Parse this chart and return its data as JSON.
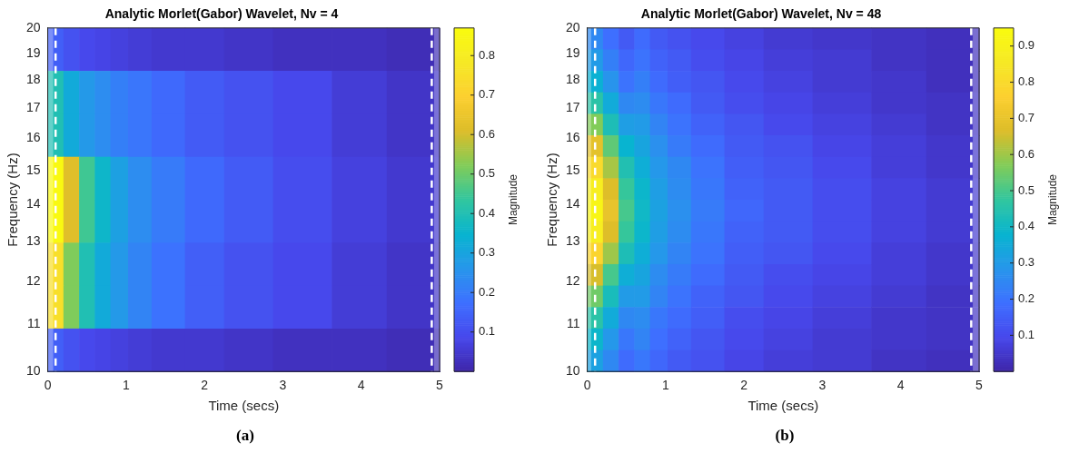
{
  "chart_data": [
    {
      "type": "heatmap",
      "title": "Analytic Morlet(Gabor) Wavelet, Nv = 4",
      "xlabel": "Time (secs)",
      "ylabel": "Frequency (Hz)",
      "clabel": "Magnitude",
      "x": [
        0.1,
        0.3,
        0.5,
        0.7,
        0.9,
        1.15,
        1.5,
        2,
        2.5,
        3.25,
        4,
        4.65
      ],
      "cells": [
        [
          0.14,
          0.11,
          0.09,
          0.08,
          0.07,
          0.06,
          0.05,
          0.05,
          0.04,
          0.03,
          0.03,
          0.02
        ],
        [
          0.4,
          0.32,
          0.27,
          0.24,
          0.21,
          0.19,
          0.16,
          0.13,
          0.11,
          0.09,
          0.06,
          0.04
        ],
        [
          0.4,
          0.32,
          0.27,
          0.24,
          0.21,
          0.19,
          0.16,
          0.13,
          0.11,
          0.09,
          0.06,
          0.04
        ],
        [
          0.86,
          0.62,
          0.45,
          0.36,
          0.29,
          0.24,
          0.2,
          0.16,
          0.13,
          0.1,
          0.07,
          0.05
        ],
        [
          0.86,
          0.62,
          0.45,
          0.36,
          0.29,
          0.24,
          0.2,
          0.16,
          0.13,
          0.1,
          0.07,
          0.05
        ],
        [
          0.75,
          0.52,
          0.4,
          0.32,
          0.27,
          0.22,
          0.18,
          0.14,
          0.11,
          0.09,
          0.06,
          0.04
        ],
        [
          0.75,
          0.52,
          0.4,
          0.32,
          0.27,
          0.22,
          0.18,
          0.14,
          0.11,
          0.09,
          0.06,
          0.04
        ],
        [
          0.14,
          0.11,
          0.09,
          0.08,
          0.07,
          0.06,
          0.05,
          0.05,
          0.04,
          0.03,
          0.03,
          0.02
        ]
      ],
      "xlim": [
        0,
        5
      ],
      "xticks": [
        0,
        1,
        2,
        3,
        4,
        5
      ],
      "ylim": [
        10,
        20
      ],
      "yticks": [
        10,
        11,
        12,
        13,
        14,
        15,
        16,
        17,
        18,
        19,
        20
      ],
      "log": "y",
      "clim": [
        0,
        0.87
      ],
      "cticks": [
        0.1,
        0.2,
        0.3,
        0.4,
        0.5,
        0.6,
        0.7,
        0.8
      ],
      "ref_lines": [
        {
          "axis": "x",
          "value": 0.1,
          "color": "#ffffff",
          "line_style": "dashed"
        },
        {
          "axis": "x",
          "value": 4.9,
          "color": "#ffffff",
          "line_style": "dashed"
        }
      ],
      "bands": [
        {
          "axis": "x",
          "from": 0,
          "to": 0.07
        },
        {
          "axis": "x",
          "from": 4.93,
          "to": 5
        }
      ],
      "annotations": [
        "(a)"
      ]
    },
    {
      "type": "heatmap",
      "title": "Analytic Morlet(Gabor) Wavelet, Nv = 48",
      "xlabel": "Time (secs)",
      "ylabel": "Frequency (Hz)",
      "clabel": "Magnitude",
      "x": [
        0.1,
        0.3,
        0.5,
        0.7,
        0.9,
        1.15,
        1.5,
        2,
        2.5,
        3.25,
        4,
        4.65
      ],
      "cells": [
        [
          0.25,
          0.19,
          0.14,
          0.18,
          0.14,
          0.12,
          0.1,
          0.08,
          0.06,
          0.05,
          0.04,
          0.03
        ],
        [
          0.3,
          0.23,
          0.17,
          0.2,
          0.16,
          0.14,
          0.11,
          0.09,
          0.07,
          0.06,
          0.04,
          0.03
        ],
        [
          0.37,
          0.28,
          0.2,
          0.23,
          0.18,
          0.15,
          0.13,
          0.1,
          0.08,
          0.06,
          0.05,
          0.03
        ],
        [
          0.46,
          0.35,
          0.25,
          0.26,
          0.21,
          0.18,
          0.14,
          0.11,
          0.09,
          0.07,
          0.05,
          0.04
        ],
        [
          0.57,
          0.43,
          0.31,
          0.3,
          0.24,
          0.2,
          0.16,
          0.13,
          0.1,
          0.08,
          0.06,
          0.04
        ],
        [
          0.69,
          0.53,
          0.38,
          0.33,
          0.27,
          0.22,
          0.18,
          0.14,
          0.12,
          0.09,
          0.07,
          0.05
        ],
        [
          0.8,
          0.61,
          0.44,
          0.36,
          0.29,
          0.25,
          0.2,
          0.15,
          0.13,
          0.1,
          0.07,
          0.05
        ],
        [
          0.88,
          0.67,
          0.48,
          0.39,
          0.31,
          0.26,
          0.21,
          0.16,
          0.14,
          0.11,
          0.08,
          0.06
        ],
        [
          0.92,
          0.7,
          0.5,
          0.4,
          0.32,
          0.27,
          0.22,
          0.17,
          0.14,
          0.11,
          0.08,
          0.06
        ],
        [
          0.88,
          0.67,
          0.48,
          0.39,
          0.31,
          0.26,
          0.21,
          0.16,
          0.14,
          0.11,
          0.08,
          0.06
        ],
        [
          0.78,
          0.6,
          0.43,
          0.36,
          0.29,
          0.24,
          0.2,
          0.15,
          0.13,
          0.1,
          0.07,
          0.05
        ],
        [
          0.66,
          0.5,
          0.36,
          0.33,
          0.26,
          0.22,
          0.18,
          0.14,
          0.11,
          0.09,
          0.07,
          0.05
        ],
        [
          0.55,
          0.42,
          0.3,
          0.3,
          0.24,
          0.2,
          0.16,
          0.13,
          0.1,
          0.08,
          0.06,
          0.04
        ],
        [
          0.46,
          0.35,
          0.25,
          0.26,
          0.21,
          0.18,
          0.15,
          0.11,
          0.09,
          0.07,
          0.05,
          0.04
        ],
        [
          0.39,
          0.29,
          0.21,
          0.24,
          0.19,
          0.16,
          0.13,
          0.1,
          0.08,
          0.06,
          0.05,
          0.04
        ],
        [
          0.32,
          0.25,
          0.18,
          0.21,
          0.17,
          0.14,
          0.12,
          0.09,
          0.07,
          0.06,
          0.04,
          0.03
        ]
      ],
      "xlim": [
        0,
        5
      ],
      "xticks": [
        0,
        1,
        2,
        3,
        4,
        5
      ],
      "ylim": [
        10,
        20
      ],
      "yticks": [
        10,
        11,
        12,
        13,
        14,
        15,
        16,
        17,
        18,
        19,
        20
      ],
      "log": "y",
      "clim": [
        0,
        0.95
      ],
      "cticks": [
        0.1,
        0.2,
        0.3,
        0.4,
        0.5,
        0.6,
        0.7,
        0.8,
        0.9
      ],
      "ref_lines": [
        {
          "axis": "x",
          "value": 0.1,
          "color": "#ffffff",
          "line_style": "dashed"
        },
        {
          "axis": "x",
          "value": 4.9,
          "color": "#ffffff",
          "line_style": "dashed"
        }
      ],
      "bands": [
        {
          "axis": "x",
          "from": 0,
          "to": 0.05
        },
        {
          "axis": "x",
          "from": 4.92,
          "to": 5
        }
      ],
      "annotations": [
        "(b)"
      ]
    }
  ]
}
